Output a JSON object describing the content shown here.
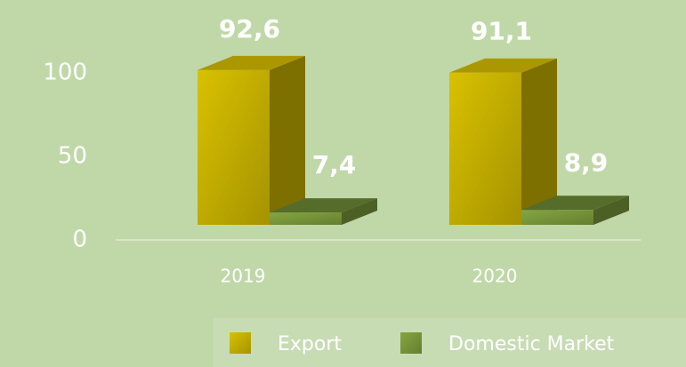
{
  "chart_data": {
    "type": "bar3d",
    "categories": [
      "2019",
      "2020"
    ],
    "series": [
      {
        "name": "Export",
        "color": "#c9b300",
        "values": [
          92.6,
          91.1
        ],
        "value_labels": [
          "92,6",
          "91,1"
        ]
      },
      {
        "name": "Domestic Market",
        "color": "#7b9a3c",
        "values": [
          7.4,
          8.9
        ],
        "value_labels": [
          "7,4",
          "8,9"
        ]
      }
    ],
    "ylim": [
      0,
      100
    ],
    "yticks": [
      0,
      50,
      100
    ],
    "grid": false
  }
}
